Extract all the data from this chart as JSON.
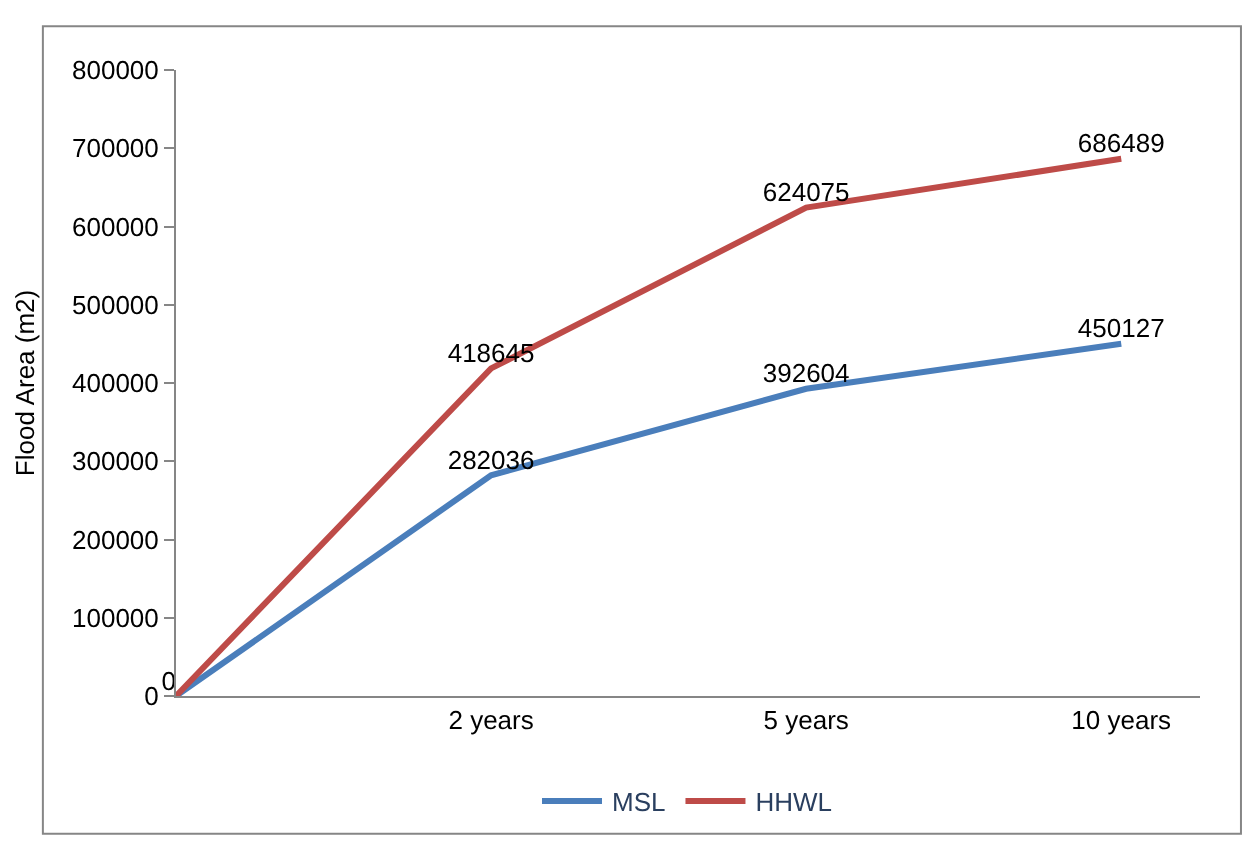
{
  "chart_data": {
    "type": "line",
    "ylabel": "Flood Area (m2)",
    "categories": [
      null,
      "2 years",
      "5 years",
      "10 years"
    ],
    "series": [
      {
        "name": "MSL",
        "color": "#4a7ebb",
        "values": [
          0,
          282036,
          392604,
          450127
        ],
        "value_labels": [
          "0",
          "282036",
          "392604",
          "450127"
        ]
      },
      {
        "name": "HHWL",
        "color": "#be4b48",
        "values": [
          0,
          418645,
          624075,
          686489
        ],
        "value_labels": [
          null,
          "418645",
          "624075",
          "686489"
        ]
      }
    ],
    "ylim": [
      0,
      800000
    ],
    "yticks": [
      0,
      100000,
      200000,
      300000,
      400000,
      500000,
      600000,
      700000,
      800000
    ],
    "legend": "bottom",
    "marker": "none",
    "line_style": "solid"
  }
}
